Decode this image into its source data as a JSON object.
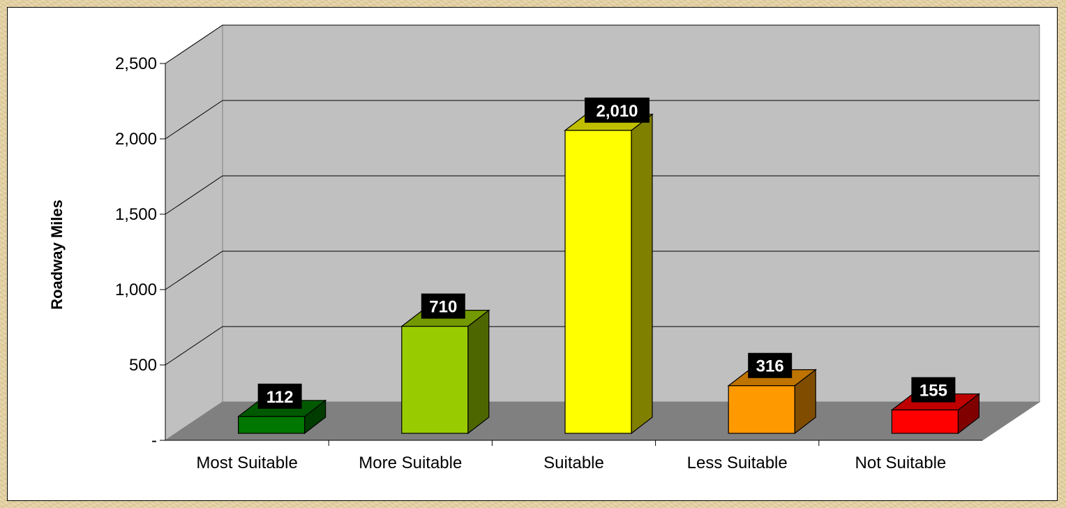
{
  "chart_data": {
    "type": "bar",
    "title": "",
    "xlabel": "",
    "ylabel": "Roadway Miles",
    "categories": [
      "Most Suitable",
      "More Suitable",
      "Suitable",
      "Less Suitable",
      "Not Suitable"
    ],
    "values": [
      112,
      710,
      2010,
      316,
      155
    ],
    "value_labels": [
      "112",
      "710",
      "2,010",
      "316",
      "155"
    ],
    "y_ticks": [
      0,
      500,
      1000,
      1500,
      2000,
      2500
    ],
    "y_tick_labels": [
      "-",
      "500",
      "1,000",
      "1,500",
      "2,000",
      "2,500"
    ],
    "ylim": [
      0,
      2500
    ],
    "grid": true,
    "legend": "none",
    "colors": {
      "bars": [
        "#007700",
        "#99cc00",
        "#ffff00",
        "#ff9900",
        "#ff0000"
      ],
      "back_wall": "#c0c0c0",
      "floor": "#808080",
      "label_box": "#000000",
      "label_text": "#ffffff"
    }
  }
}
